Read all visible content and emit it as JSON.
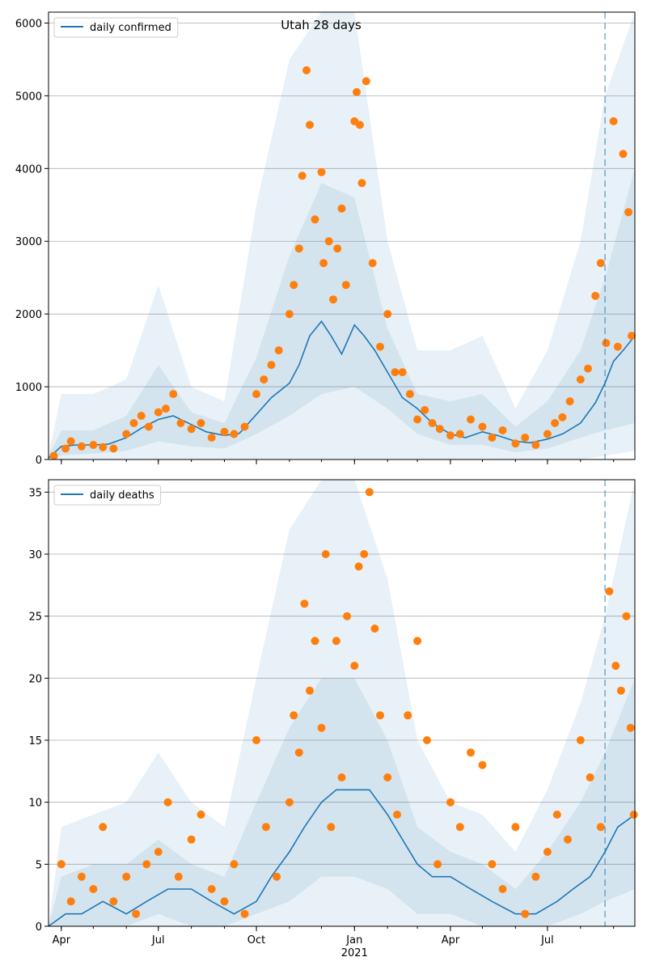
{
  "chart_data": [
    {
      "type": "line",
      "title": "Utah 28 days",
      "legend": [
        "daily confirmed"
      ],
      "legend_position": "top-left",
      "grid": "horizontal",
      "xlim": [
        "2020-03-20",
        "2021-09-21"
      ],
      "ylim": [
        0,
        6150
      ],
      "yticks": [
        0,
        1000,
        2000,
        3000,
        4000,
        5000,
        6000
      ],
      "forecast_start": "2021-08-24",
      "series": [
        {
          "name": "daily confirmed",
          "kind": "line",
          "x": [
            "2020-03-20",
            "2020-04-01",
            "2020-04-15",
            "2020-05-01",
            "2020-05-15",
            "2020-06-01",
            "2020-06-15",
            "2020-07-01",
            "2020-07-15",
            "2020-08-01",
            "2020-08-15",
            "2020-09-01",
            "2020-09-15",
            "2020-10-01",
            "2020-10-15",
            "2020-11-01",
            "2020-11-10",
            "2020-11-20",
            "2020-12-01",
            "2020-12-10",
            "2020-12-20",
            "2021-01-01",
            "2021-01-10",
            "2021-01-20",
            "2021-02-01",
            "2021-02-15",
            "2021-03-01",
            "2021-03-15",
            "2021-04-01",
            "2021-04-15",
            "2021-05-01",
            "2021-05-15",
            "2021-06-01",
            "2021-06-15",
            "2021-07-01",
            "2021-07-15",
            "2021-08-01",
            "2021-08-15",
            "2021-08-24",
            "2021-09-01",
            "2021-09-10",
            "2021-09-21"
          ],
          "y": [
            20,
            180,
            200,
            200,
            210,
            300,
            430,
            550,
            600,
            480,
            380,
            330,
            360,
            620,
            850,
            1050,
            1300,
            1700,
            1900,
            1700,
            1450,
            1850,
            1700,
            1500,
            1200,
            850,
            700,
            500,
            350,
            300,
            380,
            330,
            250,
            230,
            280,
            350,
            500,
            780,
            1050,
            1350,
            1500,
            1700
          ]
        },
        {
          "name": "",
          "kind": "band",
          "x": [
            "2020-03-20",
            "2020-04-01",
            "2020-05-01",
            "2020-06-01",
            "2020-07-01",
            "2020-08-01",
            "2020-09-01",
            "2020-10-01",
            "2020-11-01",
            "2020-12-01",
            "2021-01-01",
            "2021-02-01",
            "2021-03-01",
            "2021-04-01",
            "2021-05-01",
            "2021-06-01",
            "2021-07-01",
            "2021-08-01",
            "2021-08-24",
            "2021-09-21"
          ],
          "lower": [
            0,
            0,
            0,
            0,
            0,
            0,
            0,
            0,
            0,
            0,
            0,
            0,
            0,
            0,
            0,
            0,
            0,
            0,
            50,
            120
          ],
          "upper": [
            60,
            900,
            900,
            1100,
            2400,
            1000,
            800,
            3500,
            5500,
            6150,
            6150,
            3000,
            1500,
            1500,
            1700,
            700,
            1500,
            3000,
            5000,
            6150
          ]
        },
        {
          "name": "",
          "kind": "band",
          "x": [
            "2020-03-20",
            "2020-04-01",
            "2020-05-01",
            "2020-06-01",
            "2020-07-01",
            "2020-08-01",
            "2020-09-01",
            "2020-10-01",
            "2020-11-01",
            "2020-12-01",
            "2021-01-01",
            "2021-02-01",
            "2021-03-01",
            "2021-04-01",
            "2021-05-01",
            "2021-06-01",
            "2021-07-01",
            "2021-08-01",
            "2021-08-24",
            "2021-09-21"
          ],
          "lower": [
            0,
            60,
            80,
            120,
            250,
            180,
            150,
            350,
            600,
            900,
            1000,
            700,
            350,
            200,
            200,
            100,
            150,
            300,
            400,
            500
          ],
          "upper": [
            40,
            400,
            400,
            600,
            1300,
            650,
            500,
            1400,
            2800,
            3800,
            3600,
            1800,
            900,
            800,
            900,
            450,
            800,
            1500,
            2500,
            4000
          ]
        },
        {
          "name": "",
          "kind": "points",
          "x": [
            "2020-03-25",
            "2020-04-05",
            "2020-04-10",
            "2020-04-20",
            "2020-05-01",
            "2020-05-10",
            "2020-05-20",
            "2020-06-01",
            "2020-06-08",
            "2020-06-15",
            "2020-06-22",
            "2020-07-01",
            "2020-07-08",
            "2020-07-15",
            "2020-07-22",
            "2020-08-01",
            "2020-08-10",
            "2020-08-20",
            "2020-09-01",
            "2020-09-10",
            "2020-09-20",
            "2020-10-01",
            "2020-10-08",
            "2020-10-15",
            "2020-10-22",
            "2020-11-01",
            "2020-11-05",
            "2020-11-10",
            "2020-11-13",
            "2020-11-17",
            "2020-11-20",
            "2020-11-25",
            "2020-12-01",
            "2020-12-03",
            "2020-12-08",
            "2020-12-12",
            "2020-12-16",
            "2020-12-20",
            "2020-12-24",
            "2021-01-01",
            "2021-01-03",
            "2021-01-06",
            "2021-01-08",
            "2021-01-12",
            "2021-01-18",
            "2021-01-25",
            "2021-02-01",
            "2021-02-08",
            "2021-02-15",
            "2021-02-22",
            "2021-03-01",
            "2021-03-08",
            "2021-03-15",
            "2021-03-22",
            "2021-04-01",
            "2021-04-10",
            "2021-04-20",
            "2021-05-01",
            "2021-05-10",
            "2021-05-20",
            "2021-06-01",
            "2021-06-10",
            "2021-06-20",
            "2021-07-01",
            "2021-07-08",
            "2021-07-15",
            "2021-07-22",
            "2021-08-01",
            "2021-08-08",
            "2021-08-15",
            "2021-08-20",
            "2021-08-25",
            "2021-09-01",
            "2021-09-05",
            "2021-09-10",
            "2021-09-15",
            "2021-09-18"
          ],
          "y": [
            50,
            150,
            250,
            180,
            200,
            170,
            150,
            350,
            500,
            600,
            450,
            650,
            700,
            900,
            500,
            420,
            500,
            300,
            380,
            350,
            450,
            900,
            1100,
            1300,
            1500,
            2000,
            2400,
            2900,
            3900,
            5350,
            4600,
            3300,
            3950,
            2700,
            3000,
            2200,
            2900,
            3450,
            2400,
            4650,
            5050,
            4600,
            3800,
            5200,
            2700,
            1550,
            2000,
            1200,
            1200,
            900,
            550,
            680,
            500,
            420,
            330,
            350,
            550,
            450,
            300,
            400,
            220,
            300,
            200,
            350,
            500,
            580,
            800,
            1100,
            1250,
            2250,
            2700,
            1600,
            4650,
            1550,
            4200,
            3400,
            1700
          ]
        }
      ]
    },
    {
      "type": "line",
      "title": "",
      "legend": [
        "daily deaths"
      ],
      "legend_position": "top-left",
      "grid": "horizontal",
      "xlim": [
        "2020-03-20",
        "2021-09-21"
      ],
      "ylim": [
        0,
        36
      ],
      "yticks": [
        0,
        5,
        10,
        15,
        20,
        25,
        30,
        35
      ],
      "xticks": [
        "Apr",
        "Jul",
        "Oct",
        "Jan",
        "Apr",
        "Jul"
      ],
      "xticks_dates": [
        "2020-04-01",
        "2020-07-01",
        "2020-10-01",
        "2021-01-01",
        "2021-04-01",
        "2021-07-01"
      ],
      "x_year_label": "2021",
      "forecast_start": "2021-08-24",
      "series": [
        {
          "name": "daily deaths",
          "kind": "line",
          "x": [
            "2020-03-20",
            "2020-04-05",
            "2020-04-20",
            "2020-05-10",
            "2020-06-01",
            "2020-06-20",
            "2020-07-10",
            "2020-08-01",
            "2020-08-20",
            "2020-09-10",
            "2020-10-01",
            "2020-10-15",
            "2020-11-01",
            "2020-11-15",
            "2020-12-01",
            "2020-12-15",
            "2021-01-01",
            "2021-01-15",
            "2021-02-01",
            "2021-02-15",
            "2021-03-01",
            "2021-03-15",
            "2021-04-01",
            "2021-04-20",
            "2021-05-10",
            "2021-06-01",
            "2021-06-20",
            "2021-07-10",
            "2021-07-25",
            "2021-08-10",
            "2021-08-24",
            "2021-09-05",
            "2021-09-21"
          ],
          "y": [
            0,
            1,
            1,
            2,
            1,
            2,
            3,
            3,
            2,
            1,
            2,
            4,
            6,
            8,
            10,
            11,
            11,
            11,
            9,
            7,
            5,
            4,
            4,
            3,
            2,
            1,
            1,
            2,
            3,
            4,
            6,
            8,
            9
          ]
        },
        {
          "name": "",
          "kind": "band",
          "x": [
            "2020-03-20",
            "2020-04-01",
            "2020-05-01",
            "2020-06-01",
            "2020-07-01",
            "2020-08-01",
            "2020-09-01",
            "2020-10-01",
            "2020-11-01",
            "2020-12-01",
            "2021-01-01",
            "2021-02-01",
            "2021-03-01",
            "2021-04-01",
            "2021-05-01",
            "2021-06-01",
            "2021-07-01",
            "2021-08-01",
            "2021-08-24",
            "2021-09-21"
          ],
          "lower": [
            0,
            0,
            0,
            0,
            0,
            0,
            0,
            0,
            0,
            0,
            0,
            0,
            0,
            0,
            0,
            0,
            0,
            0,
            0,
            0
          ],
          "upper": [
            0,
            8,
            9,
            10,
            14,
            10,
            8,
            20,
            32,
            36,
            36,
            28,
            15,
            10,
            9,
            6,
            11,
            18,
            25,
            36
          ]
        },
        {
          "name": "",
          "kind": "band",
          "x": [
            "2020-03-20",
            "2020-04-01",
            "2020-05-01",
            "2020-06-01",
            "2020-07-01",
            "2020-08-01",
            "2020-09-01",
            "2020-10-01",
            "2020-11-01",
            "2020-12-01",
            "2021-01-01",
            "2021-02-01",
            "2021-03-01",
            "2021-04-01",
            "2021-05-01",
            "2021-06-01",
            "2021-07-01",
            "2021-08-01",
            "2021-08-24",
            "2021-09-21"
          ],
          "lower": [
            0,
            0,
            0,
            0,
            1,
            0,
            0,
            1,
            2,
            4,
            4,
            3,
            1,
            1,
            0,
            0,
            0,
            1,
            2,
            3
          ],
          "upper": [
            0,
            4,
            5,
            5,
            7,
            5,
            4,
            10,
            16,
            20,
            20,
            15,
            8,
            6,
            5,
            3,
            6,
            10,
            14,
            20
          ]
        },
        {
          "name": "",
          "kind": "points",
          "x": [
            "2020-04-01",
            "2020-04-10",
            "2020-04-20",
            "2020-05-01",
            "2020-05-10",
            "2020-05-20",
            "2020-06-01",
            "2020-06-10",
            "2020-06-20",
            "2020-07-01",
            "2020-07-10",
            "2020-07-20",
            "2020-08-01",
            "2020-08-10",
            "2020-08-20",
            "2020-09-01",
            "2020-09-10",
            "2020-09-20",
            "2020-10-01",
            "2020-10-10",
            "2020-10-20",
            "2020-11-01",
            "2020-11-05",
            "2020-11-10",
            "2020-11-15",
            "2020-11-20",
            "2020-11-25",
            "2020-12-01",
            "2020-12-05",
            "2020-12-10",
            "2020-12-15",
            "2020-12-20",
            "2020-12-25",
            "2021-01-01",
            "2021-01-05",
            "2021-01-10",
            "2021-01-15",
            "2021-01-20",
            "2021-01-25",
            "2021-02-01",
            "2021-02-10",
            "2021-02-20",
            "2021-03-01",
            "2021-03-10",
            "2021-03-20",
            "2021-04-01",
            "2021-04-10",
            "2021-04-20",
            "2021-05-01",
            "2021-05-10",
            "2021-05-20",
            "2021-06-01",
            "2021-06-10",
            "2021-06-20",
            "2021-07-01",
            "2021-07-10",
            "2021-07-20",
            "2021-08-01",
            "2021-08-10",
            "2021-08-20",
            "2021-08-28",
            "2021-09-03",
            "2021-09-08",
            "2021-09-13",
            "2021-09-17",
            "2021-09-20"
          ],
          "y": [
            5,
            2,
            4,
            3,
            8,
            2,
            4,
            1,
            5,
            6,
            10,
            4,
            7,
            9,
            3,
            2,
            5,
            1,
            15,
            8,
            4,
            10,
            17,
            14,
            26,
            19,
            23,
            16,
            30,
            8,
            23,
            12,
            25,
            21,
            29,
            30,
            35,
            24,
            17,
            12,
            9,
            17,
            23,
            15,
            5,
            10,
            8,
            14,
            13,
            5,
            3,
            8,
            1,
            4,
            6,
            9,
            7,
            15,
            12,
            8,
            27,
            21,
            19,
            25,
            16,
            9
          ]
        }
      ]
    }
  ]
}
